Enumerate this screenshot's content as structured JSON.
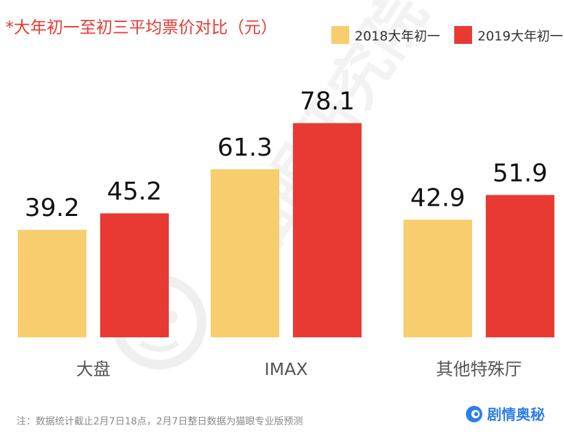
{
  "title": "*大年初一至初三平均票价对比（元）",
  "legend": {
    "item1": "2018大年初一",
    "item2": "2019大年初一"
  },
  "colors": {
    "series1": "#f8cd6e",
    "series2": "#e83a33",
    "title": "#e83a33",
    "brand": "#2f7fe6"
  },
  "footnote": "注：数据统计截止2月7日18点，2月7日整日数据为猫眼专业版预测",
  "watermark": {
    "text": "猫眼研究院",
    "icon": "cat-face-logo-icon"
  },
  "brand": {
    "name": "剧情奥秘",
    "icon": "brand-logo-icon"
  },
  "chart_data": {
    "type": "bar",
    "title": "*大年初一至初三平均票价对比（元）",
    "categories": [
      "大盘",
      "IMAX",
      "其他特殊厅"
    ],
    "series": [
      {
        "name": "2018大年初一",
        "values": [
          39.2,
          61.3,
          42.9
        ]
      },
      {
        "name": "2019大年初一",
        "values": [
          45.2,
          78.1,
          51.9
        ]
      }
    ],
    "value_labels": [
      [
        "39.2",
        "61.3",
        "42.9"
      ],
      [
        "45.2",
        "78.1",
        "51.9"
      ]
    ],
    "xlabel": "",
    "ylabel": "",
    "ylim": [
      0,
      90
    ],
    "grid": false,
    "legend": "top-right"
  }
}
